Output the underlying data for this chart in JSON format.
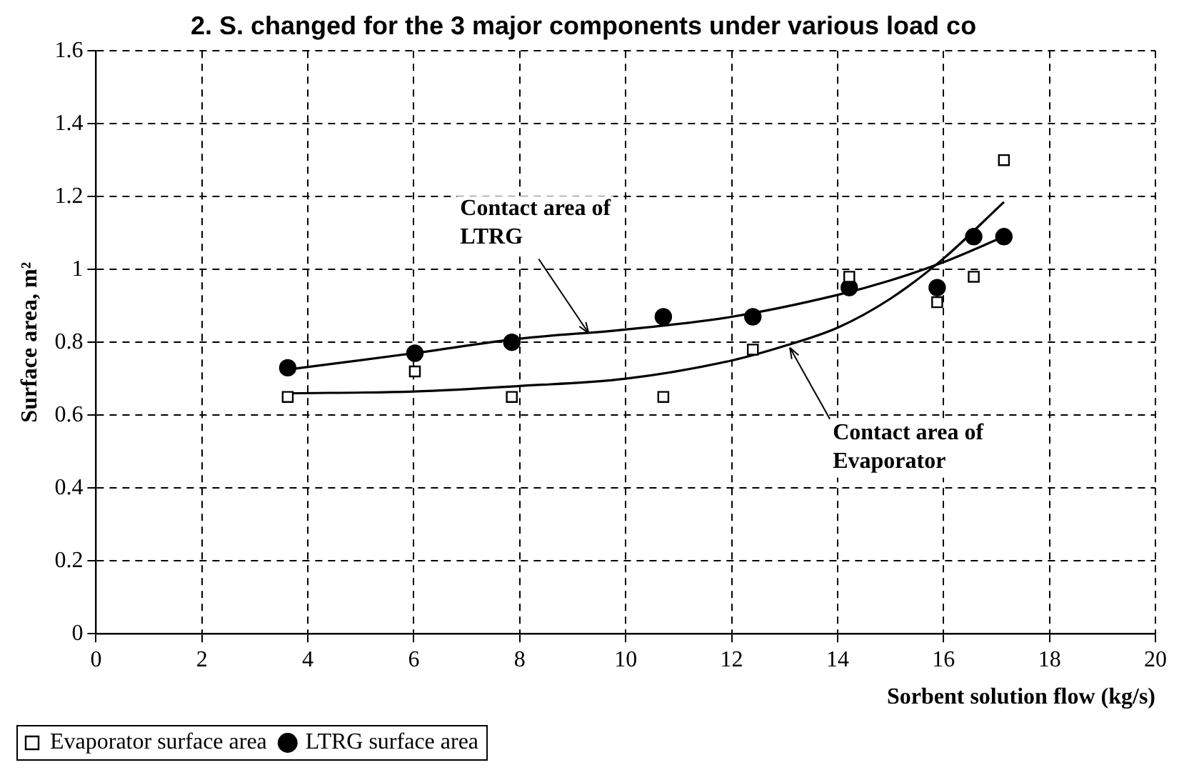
{
  "chart_data": {
    "type": "scatter",
    "title": "2. S. changed for the 3 major components under various load co",
    "xlabel": "Sorbent solution flow (kg/s)",
    "ylabel": "Surface area, m²",
    "xlim": [
      0,
      20
    ],
    "xticks": [
      0,
      2,
      4,
      6,
      8,
      10,
      12,
      14,
      16,
      18,
      20
    ],
    "ylim": [
      0,
      1.6
    ],
    "yticks": [
      0,
      0.2,
      0.4,
      0.6,
      0.8,
      1,
      1.2,
      1.4,
      1.6
    ],
    "grid": true,
    "legend": "bottom left",
    "series": [
      {
        "name": "Evaporator surface area",
        "marker": "square",
        "color": "#000000",
        "x": [
          3.62,
          6.02,
          7.85,
          10.71,
          12.4,
          14.22,
          15.88,
          16.57,
          17.14
        ],
        "values": [
          0.65,
          0.72,
          0.65,
          0.65,
          0.78,
          0.98,
          0.91,
          0.98,
          1.3
        ]
      },
      {
        "name": "LTRG surface area",
        "marker": "circle",
        "color": "#000000",
        "x": [
          3.62,
          6.02,
          7.85,
          10.71,
          12.4,
          14.22,
          15.88,
          16.57,
          17.14
        ],
        "values": [
          0.73,
          0.77,
          0.8,
          0.87,
          0.87,
          0.95,
          0.95,
          1.09,
          1.09
        ]
      },
      {
        "type": "line",
        "marker": "none",
        "color": "#000000",
        "x": [
          3.62,
          6,
          8,
          10,
          12,
          14,
          15,
          16,
          17.14
        ],
        "values": [
          0.725,
          0.77,
          0.81,
          0.835,
          0.87,
          0.93,
          0.97,
          1.02,
          1.09
        ]
      },
      {
        "type": "line",
        "marker": "none",
        "color": "#000000",
        "x": [
          3.62,
          6,
          8,
          10,
          12,
          13,
          14,
          15,
          16,
          17.14
        ],
        "values": [
          0.66,
          0.665,
          0.68,
          0.7,
          0.75,
          0.79,
          0.84,
          0.92,
          1.03,
          1.185
        ]
      }
    ],
    "annotations": [
      {
        "text": "Contact area of\nLTRG",
        "x": 9.3,
        "y": 0.825
      },
      {
        "text": "Contact area of\nEvaporator",
        "x": 13.1,
        "y": 0.785
      }
    ]
  }
}
